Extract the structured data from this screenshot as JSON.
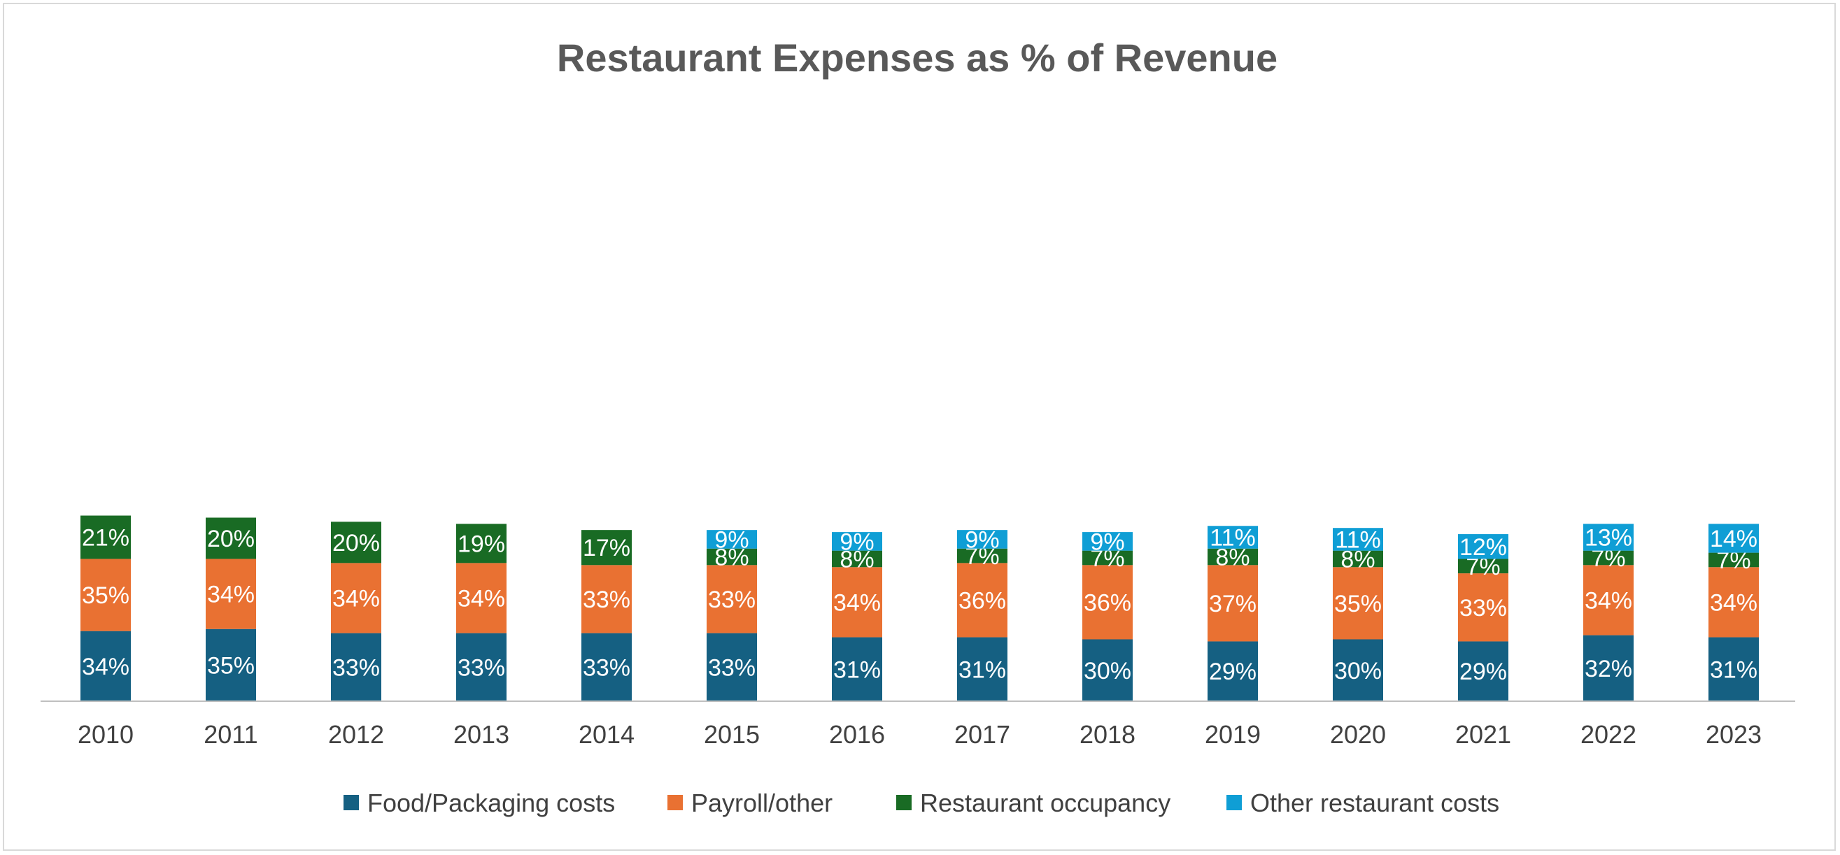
{
  "chart_data": {
    "type": "bar",
    "stacked": true,
    "title": "Restaurant Expenses as % of Revenue",
    "xlabel": "",
    "ylabel": "",
    "grid": false,
    "legend_position": "bottom",
    "categories": [
      "2010",
      "2011",
      "2012",
      "2013",
      "2014",
      "2015",
      "2016",
      "2017",
      "2018",
      "2019",
      "2020",
      "2021",
      "2022",
      "2023"
    ],
    "series": [
      {
        "name": "Food/Packaging costs",
        "color": "#156082",
        "values": [
          34,
          35,
          33,
          33,
          33,
          33,
          31,
          31,
          30,
          29,
          30,
          29,
          32,
          31
        ]
      },
      {
        "name": "Payroll/other",
        "color": "#E97132",
        "values": [
          35,
          34,
          34,
          34,
          33,
          33,
          34,
          36,
          36,
          37,
          35,
          33,
          34,
          34
        ]
      },
      {
        "name": "Restaurant occupancy",
        "color": "#196B24",
        "values": [
          21,
          20,
          20,
          19,
          17,
          8,
          8,
          7,
          7,
          8,
          8,
          7,
          7,
          7
        ]
      },
      {
        "name": "Other restaurant costs",
        "color": "#0F9ED5",
        "values": [
          null,
          null,
          null,
          null,
          null,
          9,
          9,
          9,
          9,
          11,
          11,
          12,
          13,
          14
        ]
      }
    ],
    "data_labels": [
      [
        "34%",
        "35%",
        "33%",
        "33%",
        "33%",
        "33%",
        "31%",
        "31%",
        "30%",
        "29%",
        "30%",
        "29%",
        "32%",
        "31%"
      ],
      [
        "35%",
        "34%",
        "34%",
        "34%",
        "33%",
        "33%",
        "34%",
        "36%",
        "36%",
        "37%",
        "35%",
        "33%",
        "34%",
        "34%"
      ],
      [
        "21%",
        "20%",
        "20%",
        "19%",
        "17%",
        "8%",
        "8%",
        "7%",
        "7%",
        "8%",
        "8%",
        "7%",
        "7%",
        "7%"
      ],
      [
        "",
        "",
        "",
        "",
        "",
        "9%",
        "9%",
        "9%",
        "9%",
        "11%",
        "11%",
        "12%",
        "13%",
        "14%"
      ]
    ],
    "ylim": [
      0,
      100
    ]
  }
}
